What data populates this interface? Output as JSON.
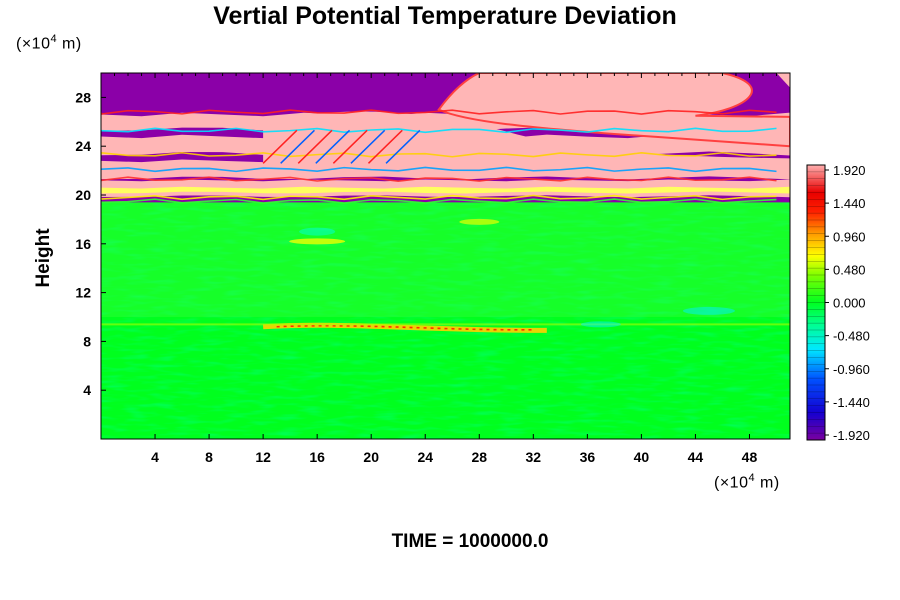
{
  "chart_data": {
    "type": "heatmap",
    "title": "Vertial Potential Temperature Deviation",
    "xlabel": "",
    "ylabel": "Height",
    "x_unit": "(×10⁴ m)",
    "y_unit": "(×10⁴ m)",
    "xlim": [
      0,
      51
    ],
    "ylim": [
      0,
      30
    ],
    "x_ticks": [
      4,
      8,
      12,
      16,
      20,
      24,
      28,
      32,
      36,
      40,
      44,
      48
    ],
    "y_ticks": [
      4,
      8,
      12,
      16,
      20,
      24,
      28
    ],
    "colorbar": {
      "labels": [
        "1.920",
        "1.440",
        "0.960",
        "0.480",
        "0.000",
        "-0.480",
        "-0.960",
        "-1.440",
        "-1.920"
      ],
      "values": [
        1.92,
        1.44,
        0.96,
        0.48,
        0.0,
        -0.48,
        -0.96,
        -1.44,
        -1.92
      ],
      "range": [
        -1.92,
        1.92
      ]
    },
    "field_description_bands": [
      {
        "y_range": [
          0,
          8.8
        ],
        "level": 0.0
      },
      {
        "y_range": [
          8.8,
          9.8
        ],
        "level": 0.6
      },
      {
        "y_range": [
          9.8,
          19.5
        ],
        "level": 0.1
      },
      {
        "y_range": [
          19.5,
          30
        ],
        "level": "alternating saturated positive / negative layers"
      }
    ]
  },
  "footer": {
    "time_label": "TIME = 1000000.0"
  },
  "colors": {
    "background_field": "#00ff20",
    "positive_sat": "#ffb6b6",
    "negative_sat": "#8b00a8"
  }
}
